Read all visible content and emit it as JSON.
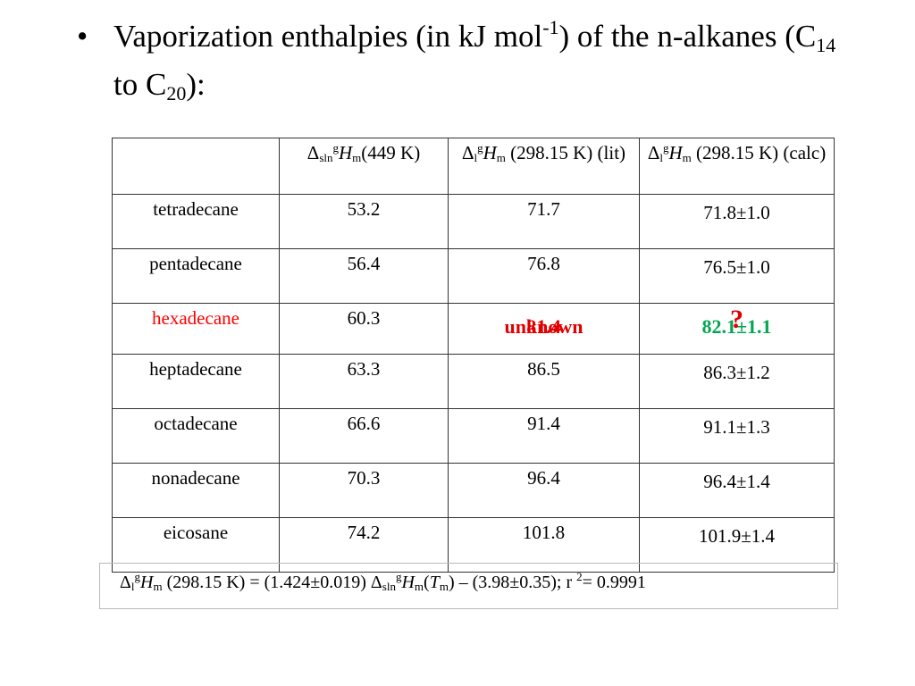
{
  "title": {
    "bullet": "•",
    "part1": "Vaporization enthalpies (in kJ mol",
    "sup1": "-1",
    "part2": ") of the n-alkanes (C",
    "sub1": "14",
    "part3": " to C",
    "sub2": "20",
    "part4": "):"
  },
  "table": {
    "header": {
      "delta": "Δ",
      "sln": "sln",
      "g": "g",
      "H": "H",
      "m": "m",
      "l": "l",
      "col1_tail": "(449 K)",
      "col2_tail": " (298.15 K) (lit)",
      "col3_tail": " (298.15 K) (calc)"
    },
    "rows": [
      {
        "name": "tetradecane",
        "sln": "53.2",
        "lit": "71.7",
        "calc": "71.8±1.0"
      },
      {
        "name": "pentadecane",
        "sln": "56.4",
        "lit": "76.8",
        "calc": "76.5±1.0"
      },
      {
        "name": "hexadecane",
        "sln": "60.3",
        "lit_overlay_a": "unknown",
        "lit_overlay_b": "81.4",
        "calc_overlay": "82.1±1.1",
        "calc_mark": "?"
      },
      {
        "name": "heptadecane",
        "sln": "63.3",
        "lit": "86.5",
        "calc": "86.3±1.2"
      },
      {
        "name": "octadecane",
        "sln": "66.6",
        "lit": "91.4",
        "calc": "91.1±1.3"
      },
      {
        "name": "nonadecane",
        "sln": "70.3",
        "lit": "96.4",
        "calc": "96.4±1.4"
      },
      {
        "name": "eicosane",
        "sln": "74.2",
        "lit": "101.8",
        "calc": "101.9±1.4"
      }
    ]
  },
  "formula": {
    "delta": "Δ",
    "l": "l",
    "g": "g",
    "H": "H",
    "m": "m",
    "seg1": " (298.15 K) = (1.424±0.019) ",
    "sln": "sln",
    "seg2": "(",
    "T": "T",
    "seg3": ") – (3.98±0.35); r ",
    "two": "2",
    "seg4": "= 0.9991"
  },
  "colors": {
    "highlight_red": "#ff0000",
    "overlay_red": "#e00000",
    "overlay_green": "#00a651",
    "border": "#333333"
  }
}
